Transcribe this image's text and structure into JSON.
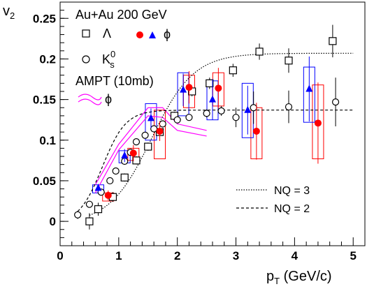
{
  "chart_data": {
    "type": "scatter",
    "xlabel": "p_T (GeV/c)",
    "ylabel": "v_2",
    "xlim": [
      0,
      5.2
    ],
    "ylim": [
      -0.03,
      0.27
    ],
    "xticks": [
      "0",
      "1",
      "2",
      "3",
      "4",
      "5"
    ],
    "yticks": [
      "0",
      "0.05",
      "0.1",
      "0.15",
      "0.2",
      "0.25"
    ],
    "grid": false,
    "legend": {
      "header": "Au+Au 200 GeV",
      "lambda_label": "Λ",
      "phi_label": "ϕ",
      "ks_label": "K",
      "ks_sup": "0",
      "ks_sub": "s",
      "ampt_label": "AMPT (10mb)",
      "ampt_phi_label": "ϕ",
      "nq3_label": "NQ = 3",
      "nq2_label": "NQ = 2"
    },
    "colors": {
      "red": "#ff0000",
      "blue": "#0000ff",
      "magenta": "#ff00ff",
      "black": "#000000"
    },
    "series": [
      {
        "name": "Λ",
        "marker": "open-square",
        "points": [
          {
            "x": 0.5,
            "y": 0.0,
            "err": 0.01
          },
          {
            "x": 0.65,
            "y": 0.015,
            "err": 0.008
          },
          {
            "x": 0.9,
            "y": 0.03,
            "err": 0.006
          },
          {
            "x": 1.1,
            "y": 0.054,
            "err": 0.005
          },
          {
            "x": 1.3,
            "y": 0.075,
            "err": 0.005
          },
          {
            "x": 1.5,
            "y": 0.092,
            "err": 0.005
          },
          {
            "x": 1.7,
            "y": 0.11,
            "err": 0.005
          },
          {
            "x": 1.95,
            "y": 0.13,
            "err": 0.005
          },
          {
            "x": 2.25,
            "y": 0.16,
            "err": 0.006
          },
          {
            "x": 2.55,
            "y": 0.17,
            "err": 0.007
          },
          {
            "x": 2.95,
            "y": 0.186,
            "err": 0.008
          },
          {
            "x": 3.4,
            "y": 0.209,
            "err": 0.01
          },
          {
            "x": 3.9,
            "y": 0.198,
            "err": 0.015
          },
          {
            "x": 4.65,
            "y": 0.222,
            "err": 0.02
          }
        ]
      },
      {
        "name": "K",
        "marker": "open-circle",
        "points": [
          {
            "x": 0.3,
            "y": 0.008,
            "err": 0.005
          },
          {
            "x": 0.5,
            "y": 0.021,
            "err": 0.004
          },
          {
            "x": 0.7,
            "y": 0.036,
            "err": 0.004
          },
          {
            "x": 0.85,
            "y": 0.05,
            "err": 0.004
          },
          {
            "x": 0.95,
            "y": 0.062,
            "err": 0.004
          },
          {
            "x": 1.1,
            "y": 0.074,
            "err": 0.004
          },
          {
            "x": 1.2,
            "y": 0.085,
            "err": 0.004
          },
          {
            "x": 1.3,
            "y": 0.098,
            "err": 0.004
          },
          {
            "x": 1.45,
            "y": 0.106,
            "err": 0.004
          },
          {
            "x": 1.6,
            "y": 0.114,
            "err": 0.004
          },
          {
            "x": 1.75,
            "y": 0.12,
            "err": 0.004
          },
          {
            "x": 2.0,
            "y": 0.125,
            "err": 0.004
          },
          {
            "x": 2.2,
            "y": 0.128,
            "err": 0.004
          },
          {
            "x": 2.5,
            "y": 0.133,
            "err": 0.005
          },
          {
            "x": 2.75,
            "y": 0.136,
            "err": 0.006
          },
          {
            "x": 3.0,
            "y": 0.128,
            "err": 0.012
          },
          {
            "x": 3.3,
            "y": 0.14,
            "err": 0.02
          },
          {
            "x": 3.9,
            "y": 0.141,
            "err": 0.02
          },
          {
            "x": 4.7,
            "y": 0.147,
            "err": 0.03
          }
        ]
      },
      {
        "name": "ϕ",
        "marker": "filled-circle",
        "color": "#ff0000",
        "points": [
          {
            "x": 0.82,
            "y": 0.032,
            "err": 0.006,
            "sys_lo": 0.025,
            "sys_hi": 0.035
          },
          {
            "x": 1.25,
            "y": 0.084,
            "err": 0.01,
            "sys_lo": 0.075,
            "sys_hi": 0.09
          },
          {
            "x": 1.7,
            "y": 0.111,
            "err": 0.012,
            "sys_lo": 0.077,
            "sys_hi": 0.137
          },
          {
            "x": 2.2,
            "y": 0.165,
            "err": 0.02,
            "sys_lo": 0.14,
            "sys_hi": 0.18
          },
          {
            "x": 2.7,
            "y": 0.164,
            "err": 0.025,
            "sys_lo": 0.142,
            "sys_hi": 0.183
          },
          {
            "x": 3.35,
            "y": 0.111,
            "err": 0.035,
            "sys_lo": 0.077,
            "sys_hi": 0.14
          },
          {
            "x": 4.4,
            "y": 0.121,
            "err": 0.05,
            "sys_lo": 0.077,
            "sys_hi": 0.168
          }
        ]
      },
      {
        "name": "ϕ",
        "marker": "filled-triangle",
        "color": "#0000ff",
        "points": [
          {
            "x": 0.65,
            "y": 0.041,
            "err": 0.005,
            "sys_lo": 0.035,
            "sys_hi": 0.045
          },
          {
            "x": 1.1,
            "y": 0.081,
            "err": 0.008,
            "sys_lo": 0.072,
            "sys_hi": 0.087
          },
          {
            "x": 1.55,
            "y": 0.127,
            "err": 0.012,
            "sys_lo": 0.1,
            "sys_hi": 0.145
          },
          {
            "x": 2.1,
            "y": 0.162,
            "err": 0.02,
            "sys_lo": 0.13,
            "sys_hi": 0.183
          },
          {
            "x": 2.6,
            "y": 0.15,
            "err": 0.025,
            "sys_lo": 0.125,
            "sys_hi": 0.173
          },
          {
            "x": 3.2,
            "y": 0.137,
            "err": 0.03,
            "sys_lo": 0.103,
            "sys_hi": 0.17
          },
          {
            "x": 4.25,
            "y": 0.163,
            "err": 0.04,
            "sys_lo": 0.122,
            "sys_hi": 0.19
          }
        ]
      }
    ],
    "ampt_band": {
      "upper": [
        [
          0.6,
          0.045
        ],
        [
          1.0,
          0.095
        ],
        [
          1.5,
          0.14
        ],
        [
          1.75,
          0.14
        ],
        [
          2.0,
          0.12
        ],
        [
          2.5,
          0.112
        ]
      ],
      "lower": [
        [
          0.6,
          0.035
        ],
        [
          1.0,
          0.088
        ],
        [
          1.5,
          0.13
        ],
        [
          1.75,
          0.128
        ],
        [
          2.0,
          0.112
        ],
        [
          2.5,
          0.105
        ]
      ]
    },
    "nq3_curve": "dotted",
    "nq2_curve": "dashed"
  }
}
